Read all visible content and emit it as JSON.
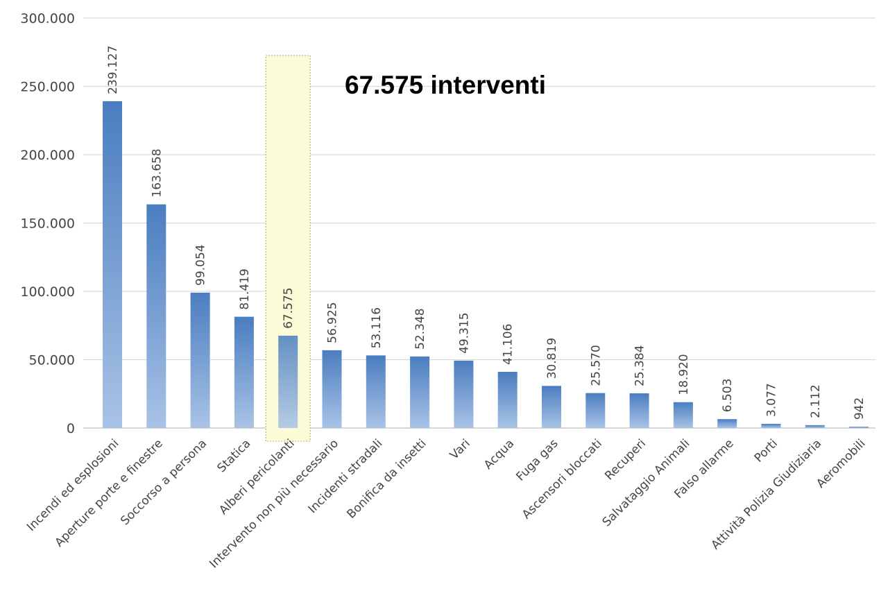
{
  "chart_data": {
    "type": "bar",
    "categories": [
      "Incendi ed esplosioni",
      "Aperture porte e finestre",
      "Soccorso a persona",
      "Statica",
      "Alberi pericolanti",
      "Intervento non più necessario",
      "Incidenti stradali",
      "Bonifica da insetti",
      "Vari",
      "Acqua",
      "Fuga gas",
      "Ascensori bloccati",
      "Recuperi",
      "Salvataggio Animali",
      "Falso allarme",
      "Porti",
      "Attività Polizia Giudiziaria",
      "Aeromobili"
    ],
    "values": [
      239127,
      163658,
      99054,
      81419,
      67575,
      56925,
      53116,
      52348,
      49315,
      41106,
      30819,
      25570,
      25384,
      18920,
      6503,
      3077,
      2112,
      942
    ],
    "data_labels": [
      "239.127",
      "163.658",
      "99.054",
      "81.419",
      "67.575",
      "56.925",
      "53.116",
      "52.348",
      "49.315",
      "41.106",
      "30.819",
      "25.570",
      "25.384",
      "18.920",
      "6.503",
      "3.077",
      "2.112",
      "942"
    ],
    "ylim": [
      0,
      300000
    ],
    "yticks": [
      0,
      50000,
      100000,
      150000,
      200000,
      250000,
      300000
    ],
    "ytick_labels": [
      "0",
      "50.000",
      "100.000",
      "150.000",
      "200.000",
      "250.000",
      "300.000"
    ],
    "grid": true,
    "legend": "none",
    "highlight_index": 4,
    "annotation": "67.575 interventi",
    "colors": {
      "bar_top": "#4a7dc0",
      "bar_bottom": "#a9c3e6",
      "highlight_fill": "#fbfbd8",
      "highlight_border": "#a8a868",
      "grid": "#d9d9d9",
      "axis": "#bfbfbf"
    }
  }
}
